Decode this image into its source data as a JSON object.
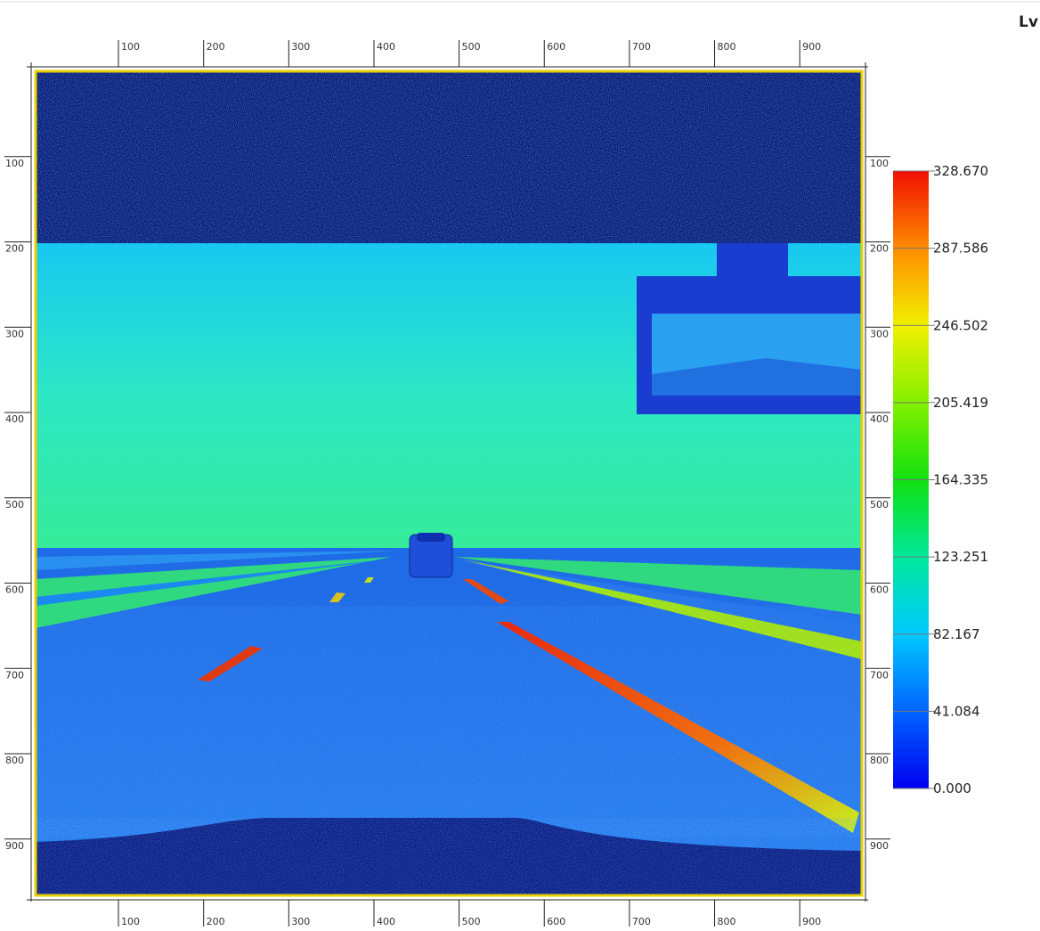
{
  "chart_data": {
    "type": "image",
    "title": "Lv",
    "xlim": [
      0,
      973
    ],
    "ylim": [
      0,
      966
    ],
    "xticks": [
      100,
      200,
      300,
      400,
      500,
      600,
      700,
      800,
      900
    ],
    "yticks": [
      100,
      200,
      300,
      400,
      500,
      600,
      700,
      800,
      900
    ],
    "colorbar": {
      "lim": [
        0,
        328.67
      ],
      "ticks": [
        {
          "value": 0,
          "label": "0.000"
        },
        41.084,
        82.167,
        123.251,
        164.335,
        205.419,
        246.502,
        287.586,
        {
          "value": 328.67,
          "label": "328.670"
        }
      ]
    }
  }
}
